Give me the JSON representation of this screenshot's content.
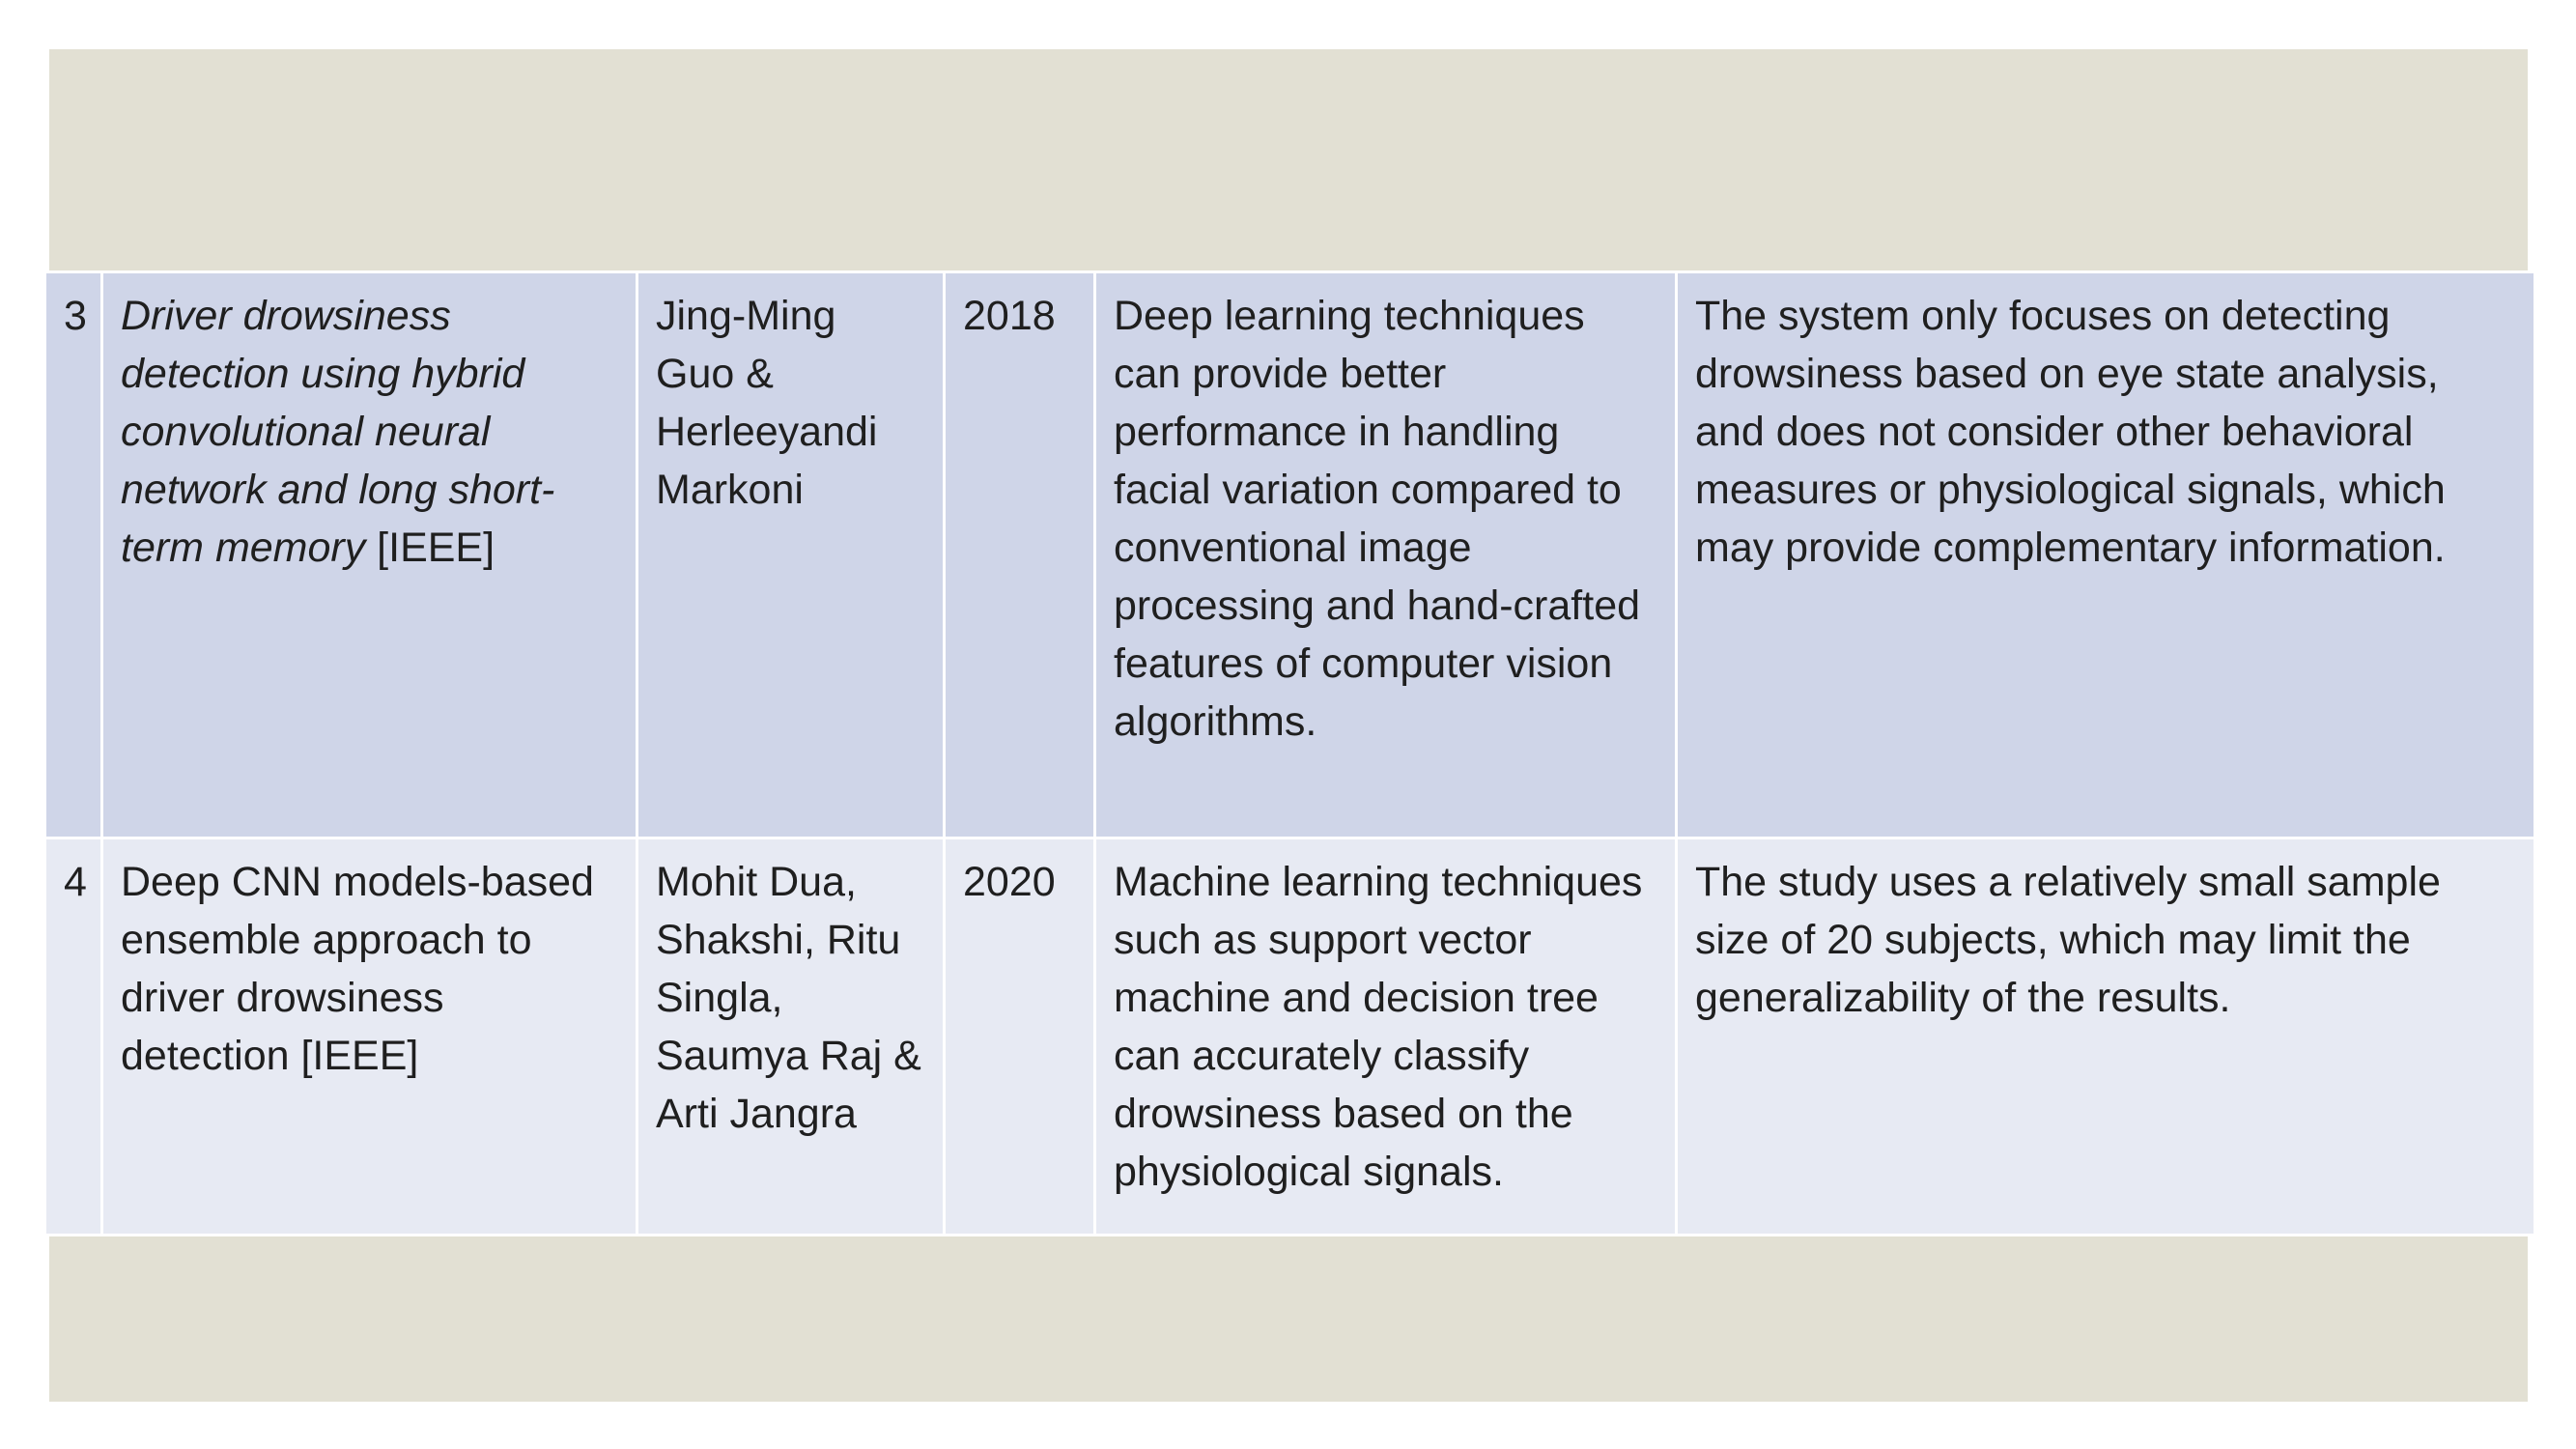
{
  "rows": [
    {
      "num": "3",
      "title_italic": "Driver drowsiness detection using hybrid convolutional neural network and long short-term memory",
      "title_plain": " [IEEE]",
      "authors": "Jing-Ming Guo & Herleeyandi Markoni",
      "year": "2018",
      "findings": "Deep learning techniques can provide better performance in handling facial variation compared to conventional image processing and hand-crafted features of computer vision algorithms.",
      "limitations": "The system only focuses on detecting drowsiness based on eye state analysis, and does not consider other behavioral measures or physiological signals, which may provide complementary information."
    },
    {
      "num": "4",
      "title_italic": "",
      "title_plain": "Deep CNN models-based ensemble approach to driver drowsiness detection [IEEE]",
      "authors": "Mohit Dua, Shakshi, Ritu Singla, Saumya Raj & Arti Jangra",
      "year": "2020",
      "findings": "Machine learning techniques such as support vector machine and decision tree can accurately classify drowsiness based on the physiological signals.",
      "limitations": "The study uses a relatively small sample size of 20 subjects, which may limit the generalizability of the results."
    }
  ],
  "colors": {
    "background_frame": "#e2e0d3",
    "row_dark": "#cfd5e8",
    "row_light": "#e7eaf3",
    "border": "#ffffff"
  }
}
